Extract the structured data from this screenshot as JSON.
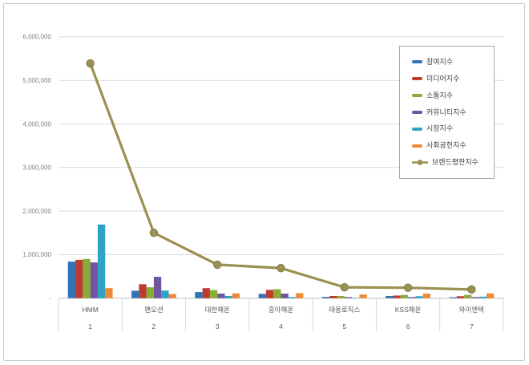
{
  "chart_data": {
    "type": "bar",
    "subtype": "clustered-bars-with-total-line",
    "title": "",
    "xlabel": "",
    "ylabel": "",
    "grid": true,
    "legend_position": "right-top",
    "categories": [
      {
        "name": "HMM",
        "rank": "1"
      },
      {
        "name": "팬오션",
        "rank": "2"
      },
      {
        "name": "대한해운",
        "rank": "3"
      },
      {
        "name": "흥아해운",
        "rank": "4"
      },
      {
        "name": "태웅로직스",
        "rank": "5"
      },
      {
        "name": "KSS해운",
        "rank": "6"
      },
      {
        "name": "와이엔텍",
        "rank": "7"
      }
    ],
    "series": [
      {
        "name": "참여지수",
        "type": "bar",
        "color": "#3273B8",
        "values": [
          840000,
          170000,
          140000,
          100000,
          30000,
          50000,
          20000
        ]
      },
      {
        "name": "미디어지수",
        "type": "bar",
        "color": "#BE3B31",
        "values": [
          880000,
          320000,
          230000,
          190000,
          50000,
          60000,
          45000
        ]
      },
      {
        "name": "소통지수",
        "type": "bar",
        "color": "#89AC33",
        "values": [
          900000,
          250000,
          185000,
          205000,
          50000,
          75000,
          75000
        ]
      },
      {
        "name": "커뮤니티지수",
        "type": "bar",
        "color": "#7155A0",
        "values": [
          820000,
          490000,
          105000,
          105000,
          25000,
          25000,
          25000
        ]
      },
      {
        "name": "시장지수",
        "type": "bar",
        "color": "#2EA3C6",
        "values": [
          1690000,
          175000,
          50000,
          25000,
          10000,
          45000,
          35000
        ]
      },
      {
        "name": "사회공헌지수",
        "type": "bar",
        "color": "#EE8A35",
        "values": [
          230000,
          95000,
          110000,
          115000,
          85000,
          105000,
          110000
        ]
      }
    ],
    "line": {
      "name": "브랜드평판지수",
      "type": "line",
      "color": "#9A9151",
      "marker_edge_color": "#7D744B",
      "values": [
        5390000,
        1500000,
        770000,
        690000,
        250000,
        240000,
        200000
      ]
    },
    "y_axis": {
      "min": 0,
      "max": 6000000,
      "tick_interval": 1000000,
      "tick_labels": [
        "-",
        "1,000,000",
        "2,000,000",
        "3,000,000",
        "4,000,000",
        "5,000,000",
        "6,000,000"
      ]
    },
    "axis_colors": {
      "gridline": "#d9d9d9",
      "axis_line": "#bfbfbf",
      "tick_label": "#7f7f7f",
      "category_label": "#595959"
    }
  }
}
